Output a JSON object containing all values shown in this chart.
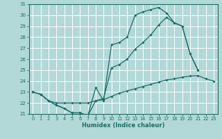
{
  "xlabel": "Humidex (Indice chaleur)",
  "ylabel": "",
  "xlim": [
    -0.5,
    23.5
  ],
  "ylim": [
    21,
    31
  ],
  "xticks": [
    0,
    1,
    2,
    3,
    4,
    5,
    6,
    7,
    8,
    9,
    10,
    11,
    12,
    13,
    14,
    15,
    16,
    17,
    18,
    19,
    20,
    21,
    22,
    23
  ],
  "yticks": [
    21,
    22,
    23,
    24,
    25,
    26,
    27,
    28,
    29,
    30,
    31
  ],
  "bg_color": "#b2d8d8",
  "grid_color": "#c8e8e8",
  "line_color": "#1a6e64",
  "line1_x": [
    0,
    1,
    2,
    3,
    4,
    5,
    6,
    7,
    8,
    9,
    10,
    11,
    12,
    13,
    14,
    15,
    16,
    17,
    18,
    19,
    20,
    21
  ],
  "line1_y": [
    23.0,
    22.8,
    22.2,
    21.8,
    21.5,
    21.1,
    21.1,
    20.85,
    23.4,
    22.2,
    27.3,
    27.5,
    28.0,
    30.0,
    30.3,
    30.5,
    30.7,
    30.2,
    29.3,
    29.0,
    26.5,
    25.0
  ],
  "line2_x": [
    0,
    1,
    2,
    3,
    4,
    5,
    6,
    7,
    8,
    9,
    10,
    11,
    12,
    13,
    14,
    15,
    16,
    17,
    18,
    19,
    20,
    21
  ],
  "line2_y": [
    23.0,
    22.8,
    22.2,
    21.8,
    21.5,
    21.1,
    21.1,
    20.85,
    22.2,
    22.4,
    25.2,
    25.5,
    26.0,
    26.9,
    27.5,
    28.2,
    29.1,
    29.8,
    29.3,
    29.0,
    26.5,
    25.0
  ],
  "line3_x": [
    0,
    1,
    2,
    3,
    4,
    5,
    6,
    7,
    8,
    9,
    10,
    11,
    12,
    13,
    14,
    15,
    16,
    17,
    18,
    19,
    20,
    21,
    22,
    23
  ],
  "line3_y": [
    23.0,
    22.8,
    22.2,
    22.0,
    22.0,
    22.0,
    22.0,
    22.0,
    22.2,
    22.3,
    22.6,
    22.9,
    23.1,
    23.3,
    23.5,
    23.7,
    23.9,
    24.1,
    24.2,
    24.35,
    24.45,
    24.5,
    24.2,
    24.0
  ]
}
